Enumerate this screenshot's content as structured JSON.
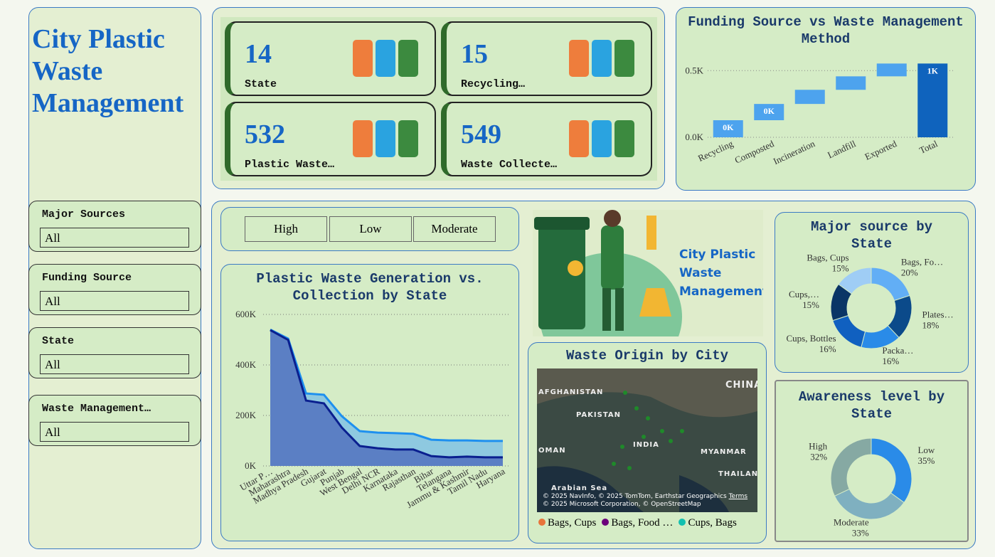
{
  "title": "City Plastic Waste Management",
  "kpis": [
    {
      "value": 14,
      "label": "State"
    },
    {
      "value": 15,
      "label": "Recycling…"
    },
    {
      "value": 532,
      "label": "Plastic Waste…"
    },
    {
      "value": 549,
      "label": "Waste Collecte…"
    }
  ],
  "slicers": [
    {
      "label": "Major Sources",
      "value": "All"
    },
    {
      "label": "Funding Source",
      "value": "All"
    },
    {
      "label": "State",
      "value": "All"
    },
    {
      "label": "Waste Management…",
      "value": "All"
    }
  ],
  "buttons": [
    "High",
    "Low",
    "Moderate"
  ],
  "illustration_text": "City Plastic Waste Management",
  "map": {
    "title": "Waste Origin by City",
    "places": [
      "AFGHANISTAN",
      "PAKISTAN",
      "CHINA",
      "INDIA",
      "OMAN",
      "MYANMAR",
      "THAILAN",
      "Arabian Sea"
    ],
    "attribution": [
      "© 2025 NavInfo, © 2025 TomTom, Earthstar Geographics",
      "Terms",
      "© 2025 Microsoft Corporation, © OpenStreetMap"
    ],
    "legend": [
      {
        "name": "Bags, Cups",
        "color": "#e8743b"
      },
      {
        "name": "Bags, Food …",
        "color": "#6b007b"
      },
      {
        "name": "Cups, Bags",
        "color": "#13c0b0"
      }
    ]
  },
  "chart_data": [
    {
      "type": "waterfall",
      "title": "Funding Source vs Waste Management Method",
      "categories": [
        "Recycling",
        "Composted",
        "Incineration",
        "Landfill",
        "Exported",
        "Total"
      ],
      "values": [
        128,
        122,
        106,
        101,
        96,
        553
      ],
      "value_labels": [
        "0K",
        "0K",
        null,
        null,
        null,
        "1K"
      ],
      "total_last": true,
      "color": "#4da3ee",
      "total_color": "#0f63bd",
      "ylim": [
        0,
        560
      ],
      "yticks": [
        {
          "value": 0,
          "label": "0.0K"
        },
        {
          "value": 500,
          "label": "0.5K"
        }
      ],
      "grid": true
    },
    {
      "type": "area",
      "title": "Plastic Waste Generation vs. Collection by State",
      "categories": [
        "Uttar P…",
        "Maharashtra",
        "Madhya Pradesh",
        "Gujarat",
        "Punjab",
        "West Bengal",
        "Delhi NCR",
        "Karnataka",
        "Rajasthan",
        "Bihar",
        "Telangana",
        "Jammu & Kashmir",
        "Tamil Nadu",
        "Haryana"
      ],
      "series": [
        {
          "color": "#1e90ef",
          "fill": "#8ec9e0",
          "values": [
            540000,
            504000,
            287000,
            282000,
            197000,
            138000,
            132000,
            130000,
            127000,
            104000,
            101000,
            101000,
            99000,
            99000
          ]
        },
        {
          "color": "#0a1f8f",
          "fill": "#5b7fc4",
          "values": [
            538000,
            499000,
            259000,
            248000,
            152000,
            79000,
            70000,
            65000,
            65000,
            39000,
            34000,
            37000,
            34000,
            34000
          ]
        }
      ],
      "ylim": [
        0,
        600000
      ],
      "yticks": [
        {
          "value": 0,
          "label": "0K"
        },
        {
          "value": 200000,
          "label": "200K"
        },
        {
          "value": 400000,
          "label": "400K"
        },
        {
          "value": 600000,
          "label": "600K"
        }
      ],
      "grid": true
    },
    {
      "type": "donut",
      "title": "Major source by State",
      "categories": [
        "Bags, Fo…",
        "Plates…",
        "Packa…",
        "Cups, Bottles",
        "Cups,…",
        "Bags, Cups"
      ],
      "values": [
        20,
        18,
        16,
        16,
        15,
        15
      ],
      "value_labels": [
        "20%",
        "18%",
        "16%",
        "16%",
        "15%",
        "15%"
      ],
      "colors": [
        "#62aef5",
        "#0b4a8a",
        "#2a8be8",
        "#1060c0",
        "#0a3566",
        "#9fcdf5"
      ]
    },
    {
      "type": "donut",
      "title": "Awareness level by State",
      "categories": [
        "Low",
        "Moderate",
        "High"
      ],
      "values": [
        35,
        33,
        32
      ],
      "value_labels": [
        "35%",
        "33%",
        "32%"
      ],
      "colors": [
        "#2a8be8",
        "#7fb0c0",
        "#86a9a3"
      ]
    }
  ]
}
